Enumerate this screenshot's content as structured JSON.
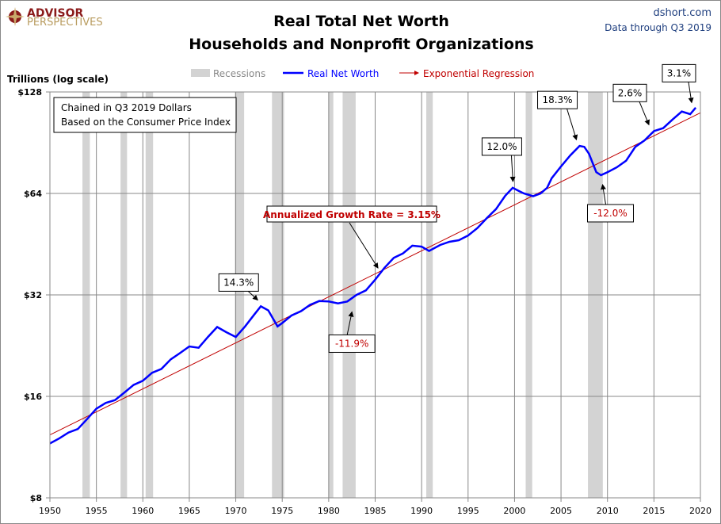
{
  "chart_data": {
    "type": "line",
    "title": "Real Total Net Worth",
    "subtitle": "Households and Nonprofit Organizations",
    "source": "dshort.com",
    "data_through": "Data through Q3 2019",
    "logo": {
      "line1": "ADVISOR",
      "line2": "PERSPECTIVES"
    },
    "ylabel": "Trillions (log scale)",
    "yscale": "log2",
    "ylim": [
      8,
      128
    ],
    "yticks": [
      {
        "v": 128,
        "label": "$128"
      },
      {
        "v": 64,
        "label": "$64"
      },
      {
        "v": 32,
        "label": "$32"
      },
      {
        "v": 16,
        "label": "$16"
      },
      {
        "v": 8,
        "label": "$8"
      }
    ],
    "xlim": [
      1950,
      2020
    ],
    "xticks": [
      "1950",
      "1955",
      "1960",
      "1965",
      "1970",
      "1975",
      "1980",
      "1985",
      "1990",
      "1995",
      "2000",
      "2005",
      "2010",
      "2015",
      "2020"
    ],
    "legend": {
      "recessions": "Recessions",
      "series": "Real Net Worth",
      "regression": "Exponential Regression"
    },
    "note": [
      "Chained in Q3 2019  Dollars",
      "Based on the Consumer Price Index"
    ],
    "colors": {
      "series": "#0000ff",
      "regression": "#c00000",
      "recession": "#d3d3d3"
    },
    "recessions": [
      [
        1953.5,
        1954.3
      ],
      [
        1957.6,
        1958.3
      ],
      [
        1960.3,
        1961.1
      ],
      [
        1969.9,
        1970.9
      ],
      [
        1973.9,
        1975.2
      ],
      [
        1980.0,
        1980.5
      ],
      [
        1981.5,
        1982.9
      ],
      [
        1990.5,
        1991.2
      ],
      [
        2001.2,
        2001.9
      ],
      [
        2007.9,
        2009.5
      ]
    ],
    "series": {
      "name": "Real Net Worth",
      "x": [
        1950,
        1951,
        1952,
        1953,
        1954,
        1955,
        1956,
        1957,
        1958,
        1959,
        1960,
        1961,
        1962,
        1963,
        1964,
        1965,
        1966,
        1967,
        1968,
        1969,
        1970,
        1971,
        1972,
        1972.7,
        1973.5,
        1974.5,
        1975,
        1976,
        1977,
        1978,
        1979,
        1980,
        1981,
        1982,
        1983,
        1984,
        1985,
        1986,
        1987,
        1988,
        1989,
        1990,
        1990.8,
        1992,
        1993,
        1994,
        1995,
        1996,
        1997,
        1998,
        1999,
        1999.8,
        2000.5,
        2001,
        2002,
        2002.8,
        2003.5,
        2004,
        2005,
        2006,
        2007,
        2007.5,
        2008,
        2008.8,
        2009.3,
        2010,
        2011,
        2012,
        2013,
        2014,
        2015,
        2016,
        2017,
        2018,
        2018.9,
        2019.5
      ],
      "values": [
        11.6,
        12.0,
        12.5,
        12.8,
        13.7,
        14.7,
        15.3,
        15.6,
        16.4,
        17.3,
        17.8,
        18.8,
        19.3,
        20.6,
        21.5,
        22.5,
        22.3,
        24.0,
        25.7,
        24.8,
        24.0,
        25.8,
        28.0,
        29.6,
        28.8,
        25.8,
        26.4,
        27.8,
        28.6,
        29.9,
        30.7,
        30.6,
        30.2,
        30.6,
        32.0,
        33.0,
        35.5,
        38.5,
        41.2,
        42.5,
        44.8,
        44.5,
        43.2,
        45.0,
        46.0,
        46.5,
        48.0,
        50.5,
        54.0,
        57.5,
        63.0,
        66.5,
        65.0,
        64.0,
        62.8,
        64.0,
        66.5,
        71.0,
        77.0,
        83.0,
        88.5,
        88.0,
        84.0,
        74.0,
        72.5,
        74.0,
        76.5,
        80.0,
        88.0,
        92.0,
        98.0,
        100.0,
        106.0,
        112.0,
        110.0,
        115.0
      ]
    },
    "regression": {
      "name": "Exponential Regression",
      "x": [
        1950,
        2020
      ],
      "values": [
        12.3,
        111.0
      ],
      "label": "Annualized Growth Rate = 3.15%"
    },
    "annotations": [
      {
        "text": "14.3%",
        "x": 1972.7,
        "v": 29.6
      },
      {
        "text": "-11.9%",
        "x": 1982.5,
        "v": 30.4
      },
      {
        "text": "12.0%",
        "x": 2000,
        "v": 66.5
      },
      {
        "text": "18.3%",
        "x": 2007,
        "v": 88.5
      },
      {
        "text": "-12.0%",
        "x": 2009.3,
        "v": 72.5
      },
      {
        "text": "2.6%",
        "x": 2014.8,
        "v": 98
      },
      {
        "text": "3.1%",
        "x": 2019.4,
        "v": 114
      }
    ]
  }
}
